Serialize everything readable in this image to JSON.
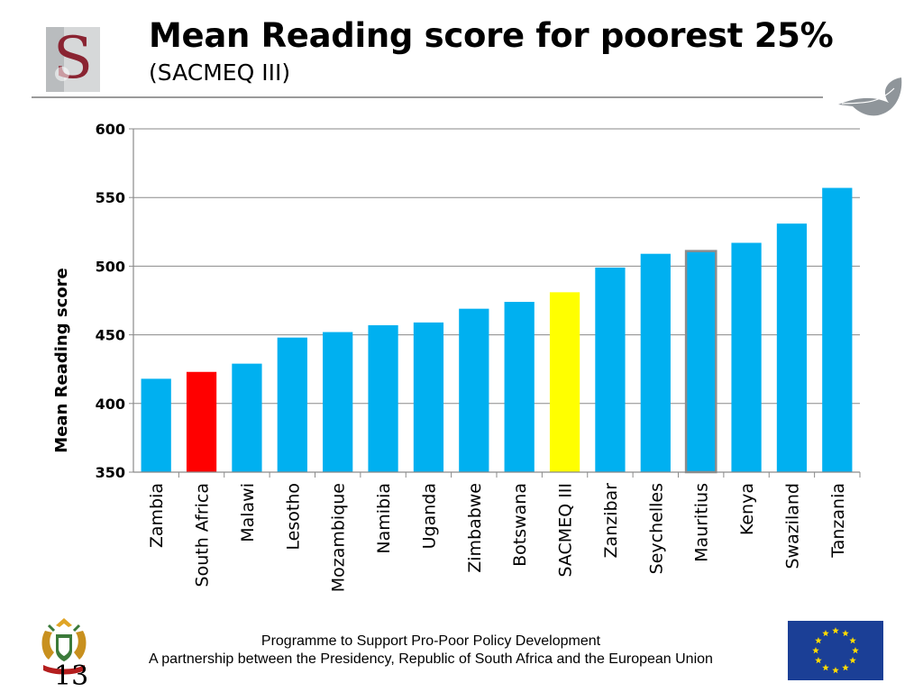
{
  "header": {
    "title": "Mean Reading score for poorest 25%",
    "subtitle": "(SACMEQ III)"
  },
  "footer": {
    "line1": "Programme to Support Pro-Poor Policy Development",
    "line2": "A partnership between the Presidency, Republic of South Africa and the European Union",
    "page_number": "13"
  },
  "icons": [
    "university-logo-icon",
    "leaf-icon",
    "coat-of-arms-icon",
    "eu-flag-icon"
  ],
  "colors": {
    "bar": "#00B0F0",
    "highlight_south_africa": "#FF0000",
    "highlight_sacmeq": "#FFFF00",
    "mauritius_outline": "#8C8C8C"
  },
  "chart_data": {
    "type": "bar",
    "ylabel": "Mean Reading score",
    "ylim": [
      350,
      600
    ],
    "yticks": [
      350,
      400,
      450,
      500,
      550,
      600
    ],
    "grid": true,
    "categories": [
      "Zambia",
      "South Africa",
      "Malawi",
      "Lesotho",
      "Mozambique",
      "Namibia",
      "Uganda",
      "Zimbabwe",
      "Botswana",
      "SACMEQ III",
      "Zanzibar",
      "Seychelles",
      "Mauritius",
      "Kenya",
      "Swaziland",
      "Tanzania"
    ],
    "values": [
      418,
      423,
      429,
      448,
      452,
      457,
      459,
      469,
      474,
      481,
      499,
      509,
      511,
      517,
      531,
      557
    ],
    "bar_colors": [
      "#00B0F0",
      "#FF0000",
      "#00B0F0",
      "#00B0F0",
      "#00B0F0",
      "#00B0F0",
      "#00B0F0",
      "#00B0F0",
      "#00B0F0",
      "#FFFF00",
      "#00B0F0",
      "#00B0F0",
      "#00B0F0",
      "#00B0F0",
      "#00B0F0",
      "#00B0F0"
    ],
    "bar_outlines": [
      null,
      null,
      null,
      null,
      null,
      null,
      null,
      null,
      null,
      null,
      null,
      null,
      "#8C8C8C",
      null,
      null,
      null
    ]
  }
}
